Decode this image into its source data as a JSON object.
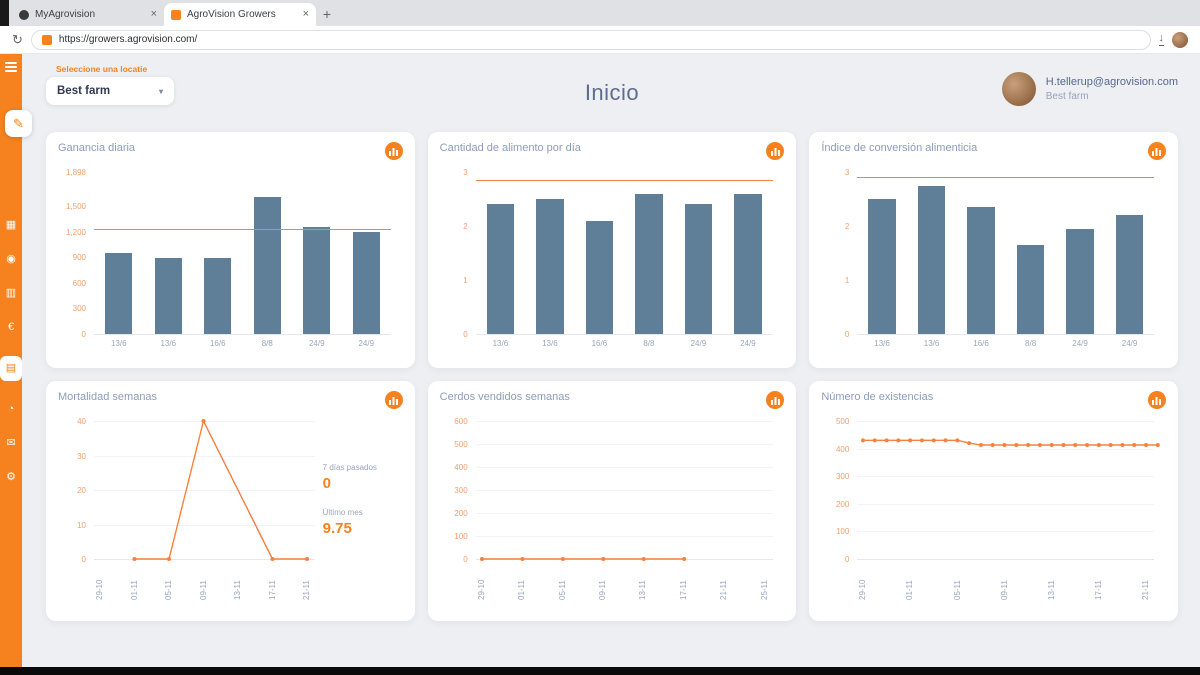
{
  "browser": {
    "tabs": [
      {
        "title": "MyAgrovision"
      },
      {
        "title": "AgroVision Growers"
      }
    ],
    "new_tab_label": "+",
    "reload_glyph": "↻",
    "url": "https://growers.agrovision.com/",
    "download_glyph": "↓"
  },
  "sidebar": {
    "edit_glyph": "✎",
    "icons": [
      {
        "name": "dashboard",
        "glyph": "▦"
      },
      {
        "name": "animals",
        "glyph": "◉"
      },
      {
        "name": "feed",
        "glyph": "▥"
      },
      {
        "name": "finance",
        "glyph": "€"
      },
      {
        "name": "reports",
        "glyph": "▤",
        "active": true
      },
      {
        "name": "analysis",
        "glyph": "◔"
      },
      {
        "name": "messages",
        "glyph": "✉"
      },
      {
        "name": "settings",
        "glyph": "⚙"
      }
    ]
  },
  "header": {
    "location_label": "Seleccione una locatie",
    "location_value": "Best farm",
    "caret": "▾",
    "page_title": "Inicio",
    "user_email": "H.tellerup@agrovision.com",
    "user_farm": "Best farm"
  },
  "colors": {
    "accent": "#f5821f",
    "line": "#f5823f",
    "bar": "#5f7e98",
    "ytick": "#f0a06c",
    "xtick": "#9aa6bd",
    "grid": "#f2f3f7",
    "axis": "#e4e7ee"
  },
  "chart_data": [
    {
      "type": "bar",
      "title": "Ganancia diaria",
      "categories": [
        "13/6",
        "13/6",
        "16/6",
        "8/8",
        "24/9",
        "24/9"
      ],
      "values": [
        950,
        890,
        890,
        1600,
        1250,
        1190
      ],
      "yticks": [
        {
          "v": 0,
          "label": "0"
        },
        {
          "v": 300,
          "label": "300"
        },
        {
          "v": 600,
          "label": "600"
        },
        {
          "v": 900,
          "label": "900"
        },
        {
          "v": 1200,
          "label": "1,200"
        },
        {
          "v": 1500,
          "label": "1,500"
        },
        {
          "v": 1898,
          "label": "1,898"
        }
      ],
      "ylim": [
        0,
        1898
      ],
      "refline": 1230,
      "rotate_xlabels": false
    },
    {
      "type": "bar",
      "title": "Cantidad de alimento por día",
      "categories": [
        "13/6",
        "13/6",
        "16/6",
        "8/8",
        "24/9",
        "24/9"
      ],
      "values": [
        2.4,
        2.5,
        2.1,
        2.6,
        2.4,
        2.6
      ],
      "yticks": [
        {
          "v": 0,
          "label": "0"
        },
        {
          "v": 1,
          "label": "1"
        },
        {
          "v": 2,
          "label": "2"
        },
        {
          "v": 3,
          "label": "3"
        }
      ],
      "ylim": [
        0,
        3
      ],
      "refline": 2.85,
      "rotate_xlabels": false
    },
    {
      "type": "bar",
      "title": "Índice de conversión alimenticia",
      "categories": [
        "13/6",
        "13/6",
        "16/6",
        "8/8",
        "24/9",
        "24/9"
      ],
      "values": [
        2.5,
        2.75,
        2.35,
        1.65,
        1.95,
        2.2
      ],
      "yticks": [
        {
          "v": 0,
          "label": "0"
        },
        {
          "v": 1,
          "label": "1"
        },
        {
          "v": 2,
          "label": "2"
        },
        {
          "v": 3,
          "label": "3"
        }
      ],
      "ylim": [
        0,
        3
      ],
      "refline": 2.9,
      "rotate_xlabels": false
    },
    {
      "type": "line",
      "title": "Mortalidad semanas",
      "xticks": [
        "29-10",
        "01-11",
        "05-11",
        "09-11",
        "13-11",
        "17-11",
        "21-11"
      ],
      "points": [
        {
          "x": 1,
          "y": 0
        },
        {
          "x": 2,
          "y": 0
        },
        {
          "x": 3,
          "y": 40
        },
        {
          "x": 5,
          "y": 0
        },
        {
          "x": 6,
          "y": 0
        }
      ],
      "yticks": [
        {
          "v": 0,
          "label": "0"
        },
        {
          "v": 10,
          "label": "10"
        },
        {
          "v": 20,
          "label": "20"
        },
        {
          "v": 30,
          "label": "30"
        },
        {
          "v": 40,
          "label": "40"
        }
      ],
      "ylim": [
        0,
        40
      ],
      "rotate_xlabels": true,
      "side_stats": [
        {
          "label": "7 días pasados",
          "value": "0"
        },
        {
          "label": "Último mes",
          "value": "9.75"
        }
      ]
    },
    {
      "type": "line",
      "title": "Cerdos vendidos semanas",
      "xticks": [
        "29-10",
        "01-11",
        "05-11",
        "09-11",
        "13-11",
        "17-11",
        "21-11",
        "25-11"
      ],
      "points": [
        {
          "x": 0,
          "y": 0
        },
        {
          "x": 1,
          "y": 0
        },
        {
          "x": 2,
          "y": 0
        },
        {
          "x": 3,
          "y": 0
        },
        {
          "x": 4,
          "y": 0
        },
        {
          "x": 5,
          "y": 0
        }
      ],
      "yticks": [
        {
          "v": 0,
          "label": "0"
        },
        {
          "v": 100,
          "label": "100"
        },
        {
          "v": 200,
          "label": "200"
        },
        {
          "v": 300,
          "label": "300"
        },
        {
          "v": 400,
          "label": "400"
        },
        {
          "v": 500,
          "label": "500"
        },
        {
          "v": 600,
          "label": "600"
        }
      ],
      "ylim": [
        0,
        600
      ],
      "rotate_xlabels": true
    },
    {
      "type": "line",
      "title": "Número de existencias",
      "xticks": [
        "29-10",
        "01-11",
        "05-11",
        "09-11",
        "13-11",
        "17-11",
        "21-11"
      ],
      "points": [
        {
          "x": 0,
          "y": 430
        },
        {
          "x": 0.25,
          "y": 430
        },
        {
          "x": 0.5,
          "y": 430
        },
        {
          "x": 0.75,
          "y": 430
        },
        {
          "x": 1,
          "y": 430
        },
        {
          "x": 1.25,
          "y": 430
        },
        {
          "x": 1.5,
          "y": 430
        },
        {
          "x": 1.75,
          "y": 430
        },
        {
          "x": 2,
          "y": 430
        },
        {
          "x": 2.25,
          "y": 420
        },
        {
          "x": 2.5,
          "y": 413
        },
        {
          "x": 2.75,
          "y": 413
        },
        {
          "x": 3,
          "y": 413
        },
        {
          "x": 3.25,
          "y": 413
        },
        {
          "x": 3.5,
          "y": 413
        },
        {
          "x": 3.75,
          "y": 413
        },
        {
          "x": 4,
          "y": 413
        },
        {
          "x": 4.25,
          "y": 413
        },
        {
          "x": 4.5,
          "y": 413
        },
        {
          "x": 4.75,
          "y": 413
        },
        {
          "x": 5,
          "y": 413
        },
        {
          "x": 5.25,
          "y": 413
        },
        {
          "x": 5.5,
          "y": 413
        },
        {
          "x": 5.75,
          "y": 413
        },
        {
          "x": 6,
          "y": 413
        },
        {
          "x": 6.25,
          "y": 413
        }
      ],
      "yticks": [
        {
          "v": 0,
          "label": "0"
        },
        {
          "v": 100,
          "label": "100"
        },
        {
          "v": 200,
          "label": "200"
        },
        {
          "v": 300,
          "label": "300"
        },
        {
          "v": 400,
          "label": "400"
        },
        {
          "v": 500,
          "label": "500"
        }
      ],
      "ylim": [
        0,
        500
      ],
      "rotate_xlabels": true
    }
  ]
}
